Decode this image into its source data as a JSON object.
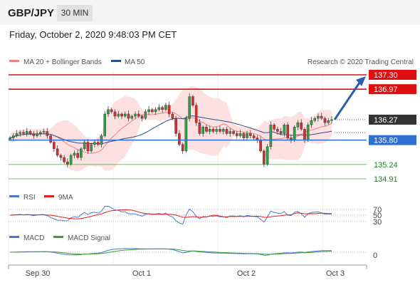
{
  "header": {
    "symbol": "GBP/JPY",
    "timeframe": "30 MIN"
  },
  "datetime": "Friday, October 2, 2020 9:48:03 PM CET",
  "watermark": "Research © 2020 Trading Central",
  "colors": {
    "resistance": "#e01010",
    "support_blue": "#2f6fd0",
    "support_green": "#4ca64c",
    "ma20": "#f08080",
    "ma50": "#2a4e8f",
    "band_fill": "#fde0e0",
    "up": "#2e9e4a",
    "down": "#d03030",
    "arrow": "#2a5ea8"
  },
  "chart_data": [
    {
      "type": "candlestick",
      "legend": [
        {
          "label": "MA 20 + Bollinger Bands",
          "color": "#f08080"
        },
        {
          "label": "MA 50",
          "color": "#2a4e8f"
        }
      ],
      "current_price": "136.27",
      "levels": [
        {
          "value": 137.3,
          "label": "137.30",
          "kind": "resistance"
        },
        {
          "value": 136.97,
          "label": "136.97",
          "kind": "resistance"
        },
        {
          "value": 135.8,
          "label": "135.80",
          "kind": "support_blue"
        },
        {
          "value": 135.24,
          "label": "135.24",
          "kind": "support_green"
        },
        {
          "value": 134.91,
          "label": "134.91",
          "kind": "support_green"
        }
      ],
      "forecast_target": 137.3,
      "x_labels": [
        "Sep 30",
        "Oct 1",
        "Oct 2",
        "Oct 3"
      ],
      "close_series": [
        135.85,
        135.9,
        135.95,
        135.98,
        135.95,
        136.0,
        135.95,
        135.9,
        135.95,
        135.98,
        136.0,
        135.9,
        135.75,
        135.6,
        135.45,
        135.4,
        135.3,
        135.25,
        135.45,
        135.5,
        135.4,
        135.6,
        135.75,
        135.55,
        135.7,
        135.75,
        135.7,
        135.9,
        136.4,
        136.5,
        136.45,
        136.35,
        136.4,
        136.35,
        136.4,
        136.3,
        136.35,
        136.4,
        136.35,
        136.3,
        136.45,
        136.5,
        136.45,
        136.5,
        136.55,
        136.5,
        136.6,
        136.4,
        136.3,
        135.95,
        135.7,
        135.55,
        136.3,
        136.8,
        136.6,
        136.2,
        135.95,
        136.1,
        136.0,
        136.05,
        136.0,
        136.05,
        136.0,
        136.05,
        135.95,
        136.0,
        135.95,
        135.9,
        135.95,
        135.85,
        135.95,
        135.9,
        135.85,
        135.8,
        135.55,
        135.25,
        135.65,
        136.15,
        136.05,
        136.0,
        135.95,
        136.15,
        135.85,
        135.8,
        136.1,
        136.2,
        136.05,
        135.8,
        136.15,
        136.25,
        136.3,
        136.35,
        136.3,
        136.2,
        136.25,
        136.27
      ]
    },
    {
      "type": "line",
      "legend": [
        {
          "label": "RSI",
          "color": "#4a78d0"
        },
        {
          "label": "9MA",
          "color": "#e02020"
        }
      ],
      "y_ticks": [
        "70",
        "50",
        "30"
      ],
      "y_tick_values": [
        70,
        50,
        30
      ]
    },
    {
      "type": "line",
      "legend": [
        {
          "label": "MACD",
          "color": "#4a78d0"
        },
        {
          "label": "MACD Signal",
          "color": "#3ca030"
        }
      ],
      "y_ticks": [
        "0"
      ],
      "y_tick_values": [
        0
      ]
    }
  ]
}
